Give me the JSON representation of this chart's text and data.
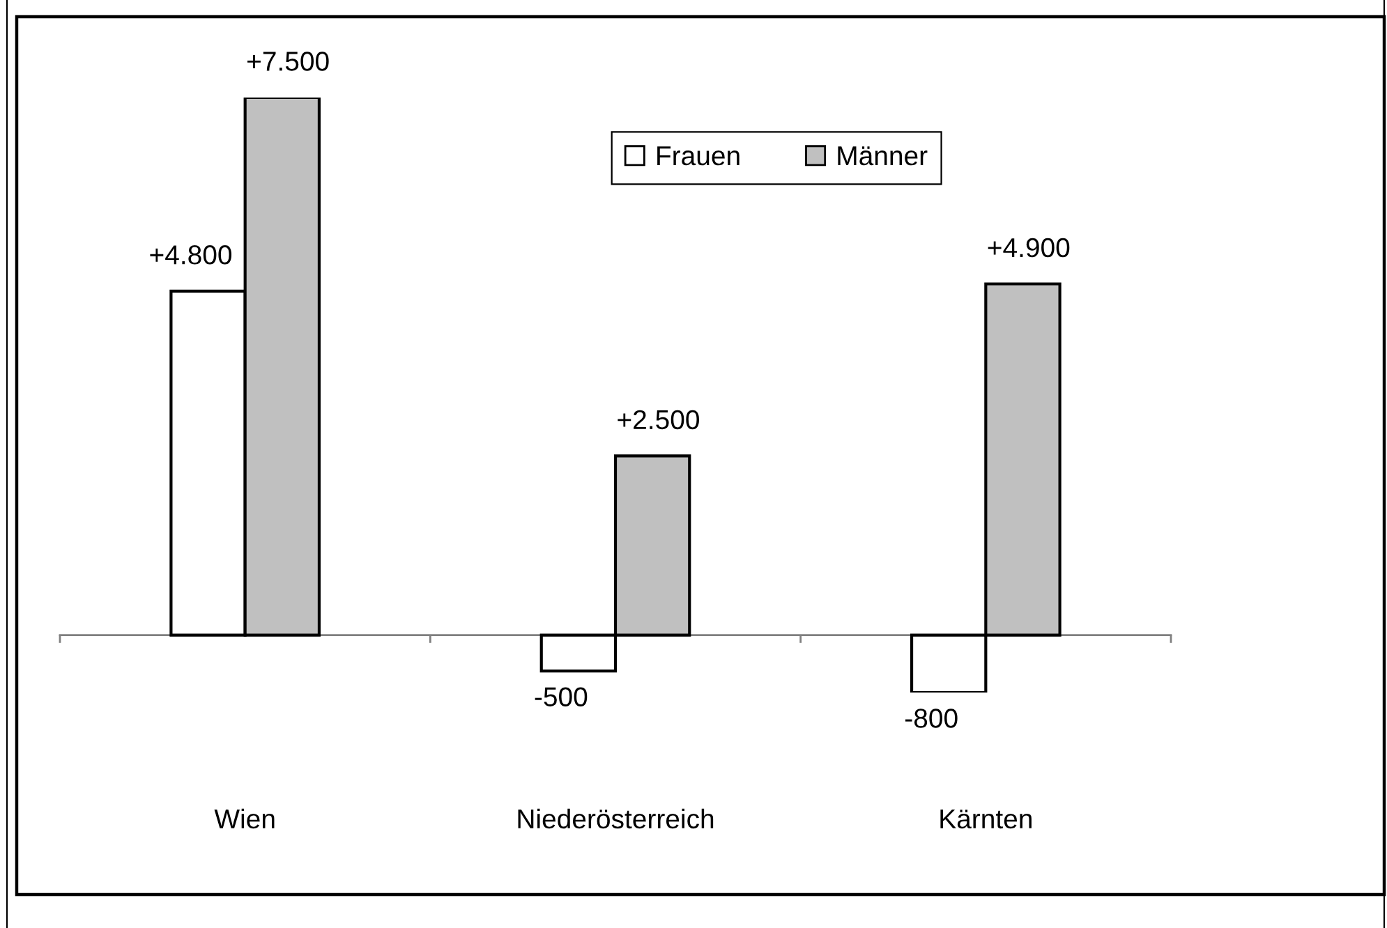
{
  "chart_data": {
    "type": "bar",
    "categories": [
      "Wien",
      "Niederösterreich",
      "Kärnten"
    ],
    "series": [
      {
        "name": "Frauen",
        "color": "#ffffff",
        "values": [
          4800,
          -500,
          -800
        ],
        "value_labels": [
          "+4.800",
          "-500",
          "-800"
        ]
      },
      {
        "name": "Männer",
        "color": "#c0c0c0",
        "values": [
          7500,
          2500,
          4900
        ],
        "value_labels": [
          "+7.500",
          "+2.500",
          "+4.900"
        ]
      }
    ],
    "tick_labels": "x",
    "legend": "top"
  }
}
